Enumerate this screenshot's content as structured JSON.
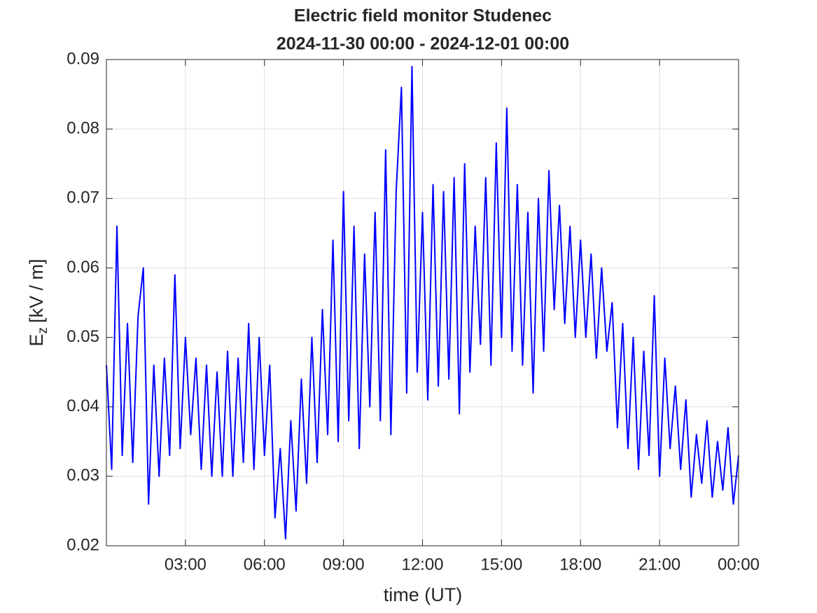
{
  "chart_data": {
    "type": "line",
    "title": [
      "Electric field monitor Studenec",
      "2024-11-30 00:00 - 2024-12-01 00:00"
    ],
    "xlabel": "time (UT)",
    "ylabel": {
      "symbol": "E",
      "subscript": "z",
      "unit": "[kV / m]"
    },
    "x": [
      0,
      0.2,
      0.4,
      0.6,
      0.8,
      1,
      1.2,
      1.4,
      1.6,
      1.8,
      2,
      2.2,
      2.4,
      2.6,
      2.8,
      3,
      3.2,
      3.4,
      3.6,
      3.8,
      4,
      4.2,
      4.4,
      4.6,
      4.8,
      5,
      5.2,
      5.4,
      5.6,
      5.8,
      6,
      6.2,
      6.4,
      6.6,
      6.8,
      7,
      7.2,
      7.4,
      7.6,
      7.8,
      8,
      8.2,
      8.4,
      8.6,
      8.8,
      9,
      9.2,
      9.4,
      9.6,
      9.8,
      10,
      10.2,
      10.4,
      10.6,
      10.8,
      11,
      11.2,
      11.4,
      11.6,
      11.8,
      12,
      12.2,
      12.4,
      12.6,
      12.8,
      13,
      13.2,
      13.4,
      13.6,
      13.8,
      14,
      14.2,
      14.4,
      14.6,
      14.8,
      15,
      15.2,
      15.4,
      15.6,
      15.8,
      16,
      16.2,
      16.4,
      16.6,
      16.8,
      17,
      17.2,
      17.4,
      17.6,
      17.8,
      18,
      18.2,
      18.4,
      18.6,
      18.8,
      19,
      19.2,
      19.4,
      19.6,
      19.8,
      20,
      20.2,
      20.4,
      20.6,
      20.8,
      21,
      21.2,
      21.4,
      21.6,
      21.8,
      22,
      22.2,
      22.4,
      22.6,
      22.8,
      23,
      23.2,
      23.4,
      23.6,
      23.8,
      24
    ],
    "series": [
      {
        "name": "Ez",
        "color": "#0000ff",
        "values": [
          0.046,
          0.031,
          0.066,
          0.033,
          0.052,
          0.032,
          0.053,
          0.06,
          0.026,
          0.046,
          0.03,
          0.047,
          0.033,
          0.059,
          0.034,
          0.05,
          0.036,
          0.047,
          0.031,
          0.046,
          0.03,
          0.045,
          0.03,
          0.048,
          0.03,
          0.047,
          0.032,
          0.052,
          0.031,
          0.05,
          0.033,
          0.046,
          0.024,
          0.034,
          0.021,
          0.038,
          0.025,
          0.044,
          0.029,
          0.05,
          0.032,
          0.054,
          0.036,
          0.064,
          0.035,
          0.071,
          0.038,
          0.066,
          0.034,
          0.062,
          0.04,
          0.068,
          0.038,
          0.077,
          0.036,
          0.071,
          0.086,
          0.042,
          0.089,
          0.045,
          0.068,
          0.041,
          0.072,
          0.043,
          0.071,
          0.044,
          0.073,
          0.039,
          0.075,
          0.045,
          0.066,
          0.049,
          0.073,
          0.046,
          0.078,
          0.05,
          0.083,
          0.048,
          0.072,
          0.046,
          0.068,
          0.042,
          0.07,
          0.048,
          0.074,
          0.054,
          0.069,
          0.052,
          0.066,
          0.05,
          0.064,
          0.05,
          0.062,
          0.047,
          0.06,
          0.048,
          0.055,
          0.037,
          0.052,
          0.034,
          0.05,
          0.031,
          0.048,
          0.033,
          0.056,
          0.03,
          0.047,
          0.034,
          0.043,
          0.031,
          0.041,
          0.027,
          0.036,
          0.029,
          0.038,
          0.027,
          0.035,
          0.028,
          0.037,
          0.026,
          0.033
        ]
      }
    ],
    "xlim": [
      0,
      24
    ],
    "xticks": [
      {
        "value": 3,
        "label": "03:00"
      },
      {
        "value": 6,
        "label": "06:00"
      },
      {
        "value": 9,
        "label": "09:00"
      },
      {
        "value": 12,
        "label": "12:00"
      },
      {
        "value": 15,
        "label": "15:00"
      },
      {
        "value": 18,
        "label": "18:00"
      },
      {
        "value": 21,
        "label": "21:00"
      },
      {
        "value": 24,
        "label": "00:00"
      }
    ],
    "ylim": [
      0.02,
      0.09
    ],
    "yticks": [
      0.02,
      0.03,
      0.04,
      0.05,
      0.06,
      0.07,
      0.08,
      0.09
    ],
    "grid": true
  }
}
